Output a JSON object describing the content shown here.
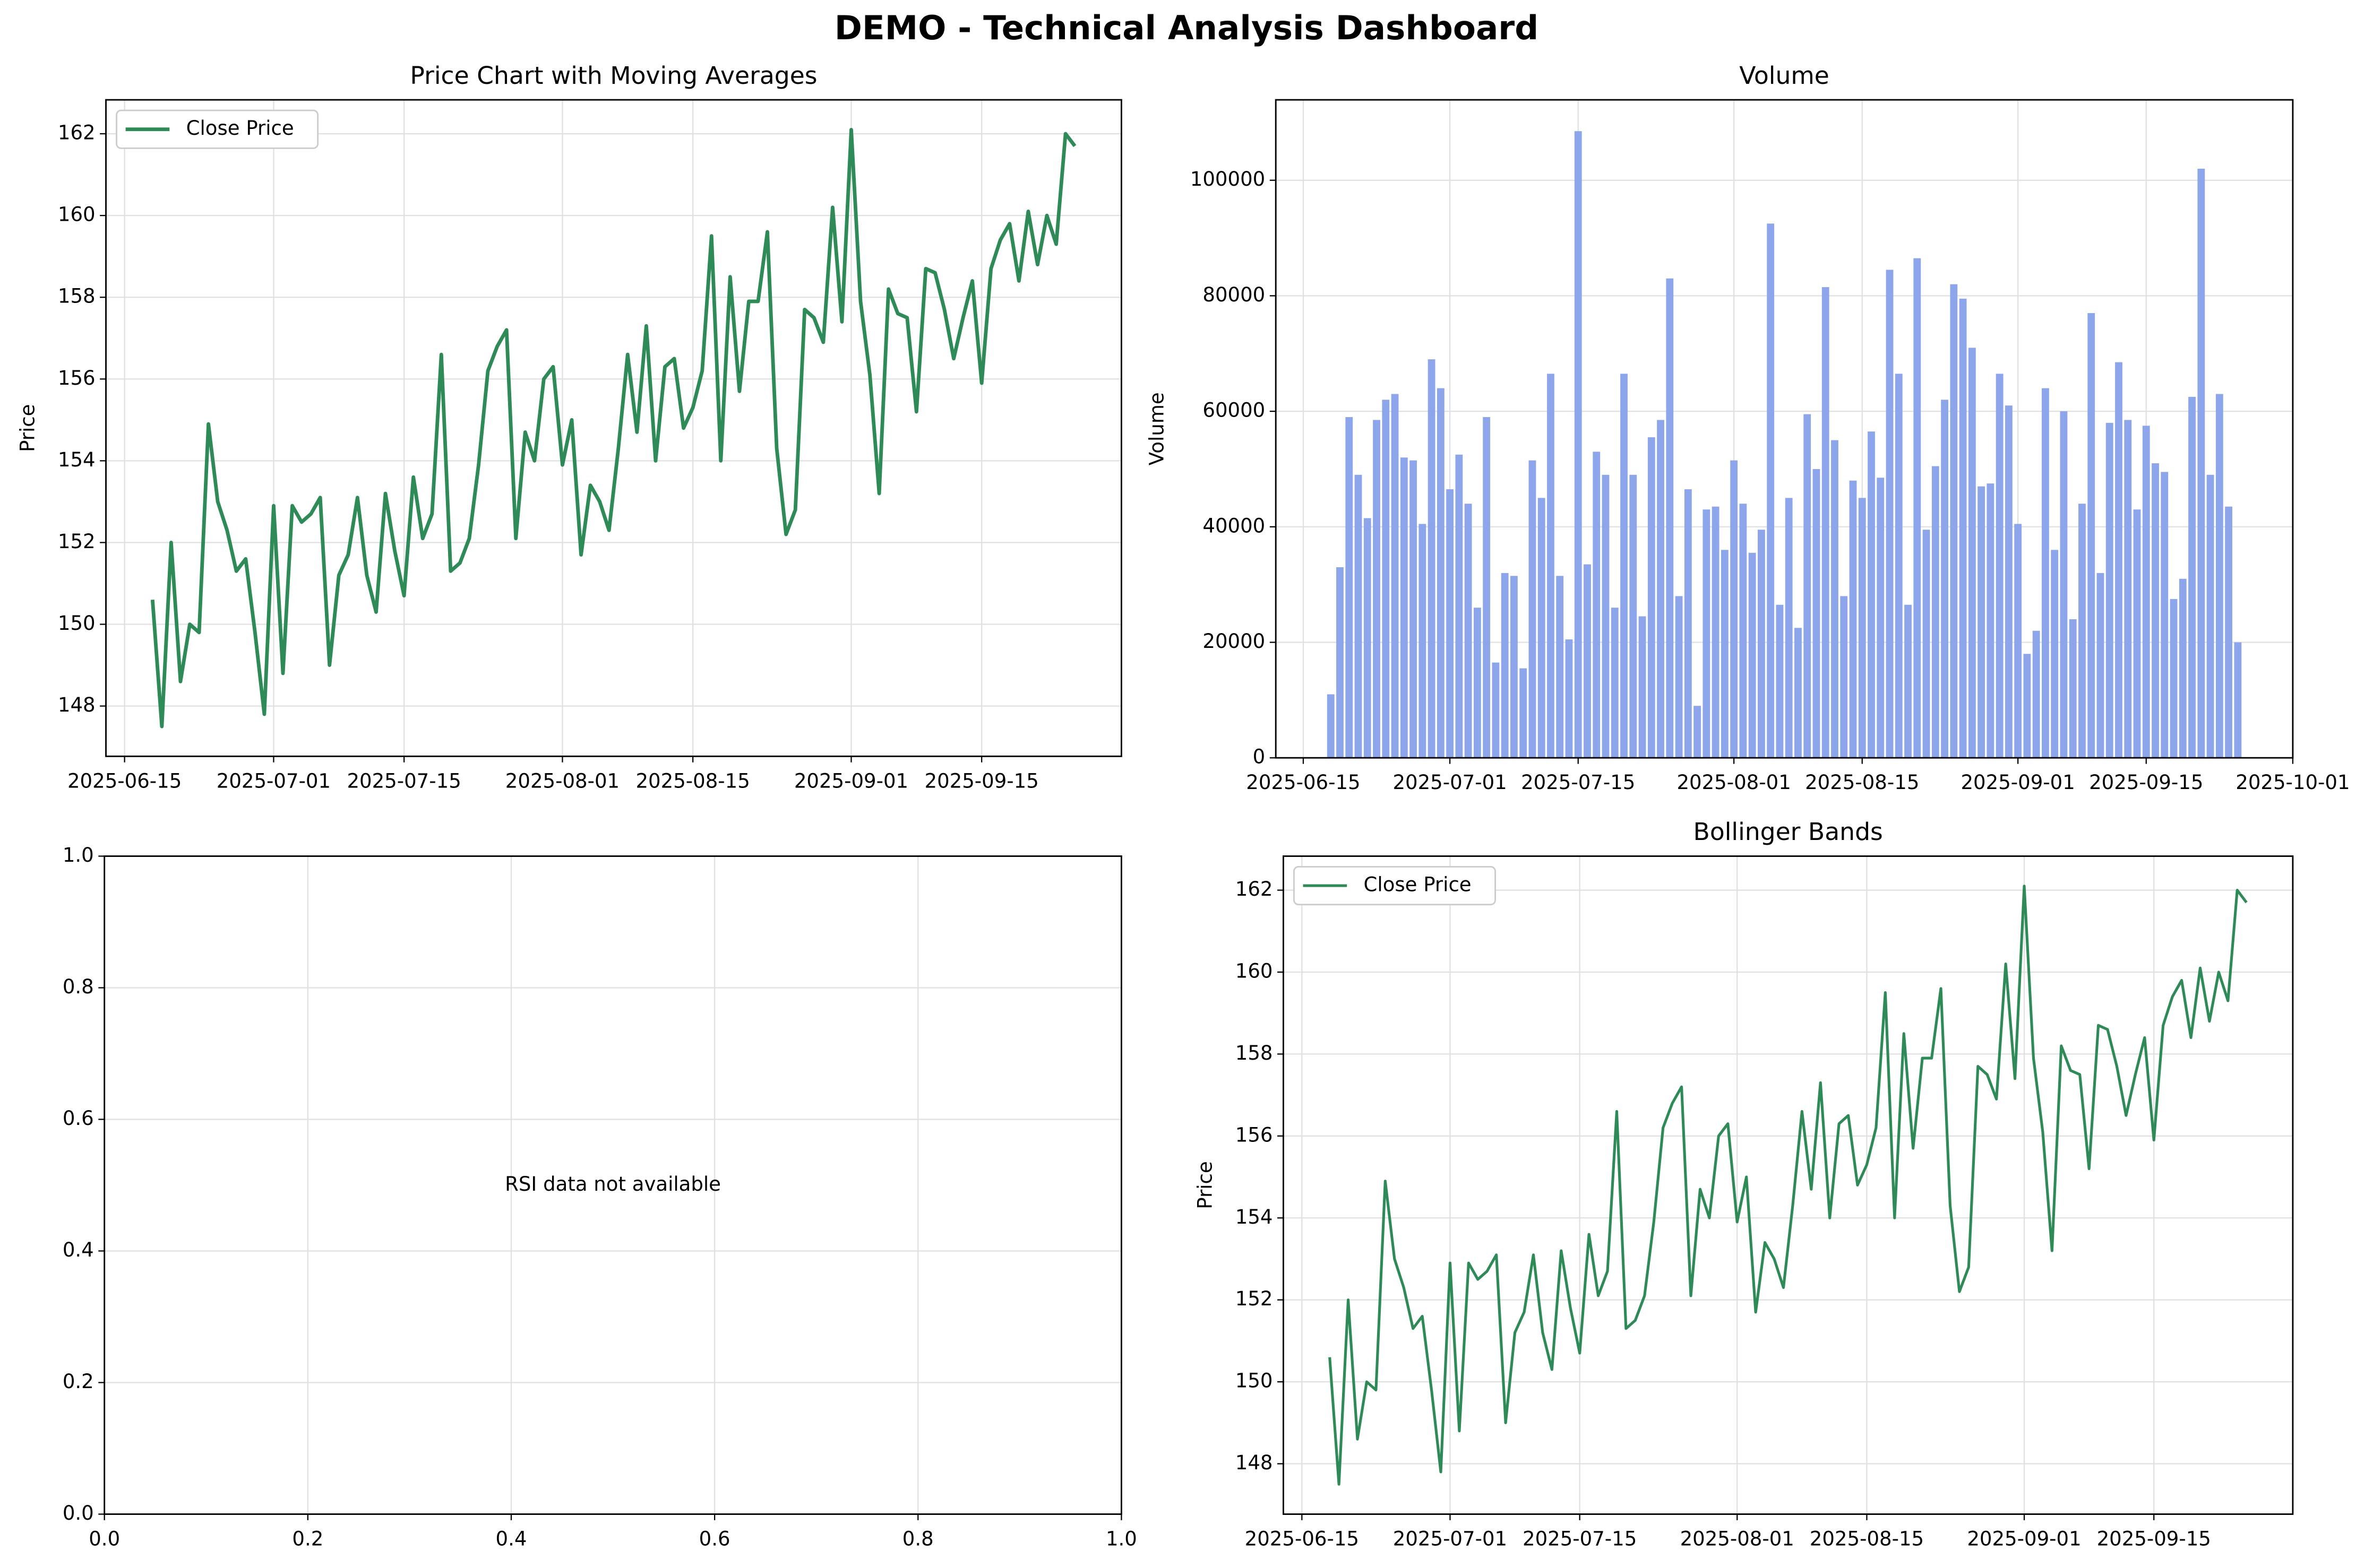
{
  "title": "DEMO - Technical Analysis Dashboard",
  "chart_data": [
    {
      "type": "line",
      "title": "Price Chart with Moving Averages",
      "ylabel": "Price",
      "x": [
        "2025-06-18",
        "2025-06-19",
        "2025-06-20",
        "2025-06-21",
        "2025-06-22",
        "2025-06-23",
        "2025-06-24",
        "2025-06-25",
        "2025-06-26",
        "2025-06-27",
        "2025-06-28",
        "2025-06-29",
        "2025-06-30",
        "2025-07-01",
        "2025-07-02",
        "2025-07-03",
        "2025-07-04",
        "2025-07-05",
        "2025-07-06",
        "2025-07-07",
        "2025-07-08",
        "2025-07-09",
        "2025-07-10",
        "2025-07-11",
        "2025-07-12",
        "2025-07-13",
        "2025-07-14",
        "2025-07-15",
        "2025-07-16",
        "2025-07-17",
        "2025-07-18",
        "2025-07-19",
        "2025-07-20",
        "2025-07-21",
        "2025-07-22",
        "2025-07-23",
        "2025-07-24",
        "2025-07-25",
        "2025-07-26",
        "2025-07-27",
        "2025-07-28",
        "2025-07-29",
        "2025-07-30",
        "2025-07-31",
        "2025-08-01",
        "2025-08-02",
        "2025-08-03",
        "2025-08-04",
        "2025-08-05",
        "2025-08-06",
        "2025-08-07",
        "2025-08-08",
        "2025-08-09",
        "2025-08-10",
        "2025-08-11",
        "2025-08-12",
        "2025-08-13",
        "2025-08-14",
        "2025-08-15",
        "2025-08-16",
        "2025-08-17",
        "2025-08-18",
        "2025-08-19",
        "2025-08-20",
        "2025-08-21",
        "2025-08-22",
        "2025-08-23",
        "2025-08-24",
        "2025-08-25",
        "2025-08-26",
        "2025-08-27",
        "2025-08-28",
        "2025-08-29",
        "2025-08-30",
        "2025-08-31",
        "2025-09-01",
        "2025-09-02",
        "2025-09-03",
        "2025-09-04",
        "2025-09-05",
        "2025-09-06",
        "2025-09-07",
        "2025-09-08",
        "2025-09-09",
        "2025-09-10",
        "2025-09-11",
        "2025-09-12",
        "2025-09-13",
        "2025-09-14",
        "2025-09-15",
        "2025-09-16",
        "2025-09-17",
        "2025-09-18",
        "2025-09-19",
        "2025-09-20",
        "2025-09-21",
        "2025-09-22",
        "2025-09-23",
        "2025-09-24",
        "2025-09-25"
      ],
      "series": [
        {
          "name": "Close Price",
          "color": "#2e8b57",
          "values": [
            150.6,
            147.5,
            152.0,
            148.6,
            150.0,
            149.8,
            154.9,
            153.0,
            152.3,
            151.3,
            151.6,
            149.8,
            147.8,
            152.9,
            148.8,
            152.9,
            152.5,
            152.7,
            153.1,
            149.0,
            151.2,
            151.7,
            153.1,
            151.2,
            150.3,
            153.2,
            151.8,
            150.7,
            153.6,
            152.1,
            152.7,
            156.6,
            151.3,
            151.5,
            152.1,
            153.9,
            156.2,
            156.8,
            157.2,
            152.1,
            154.7,
            154.0,
            156.0,
            156.3,
            153.9,
            155.0,
            151.7,
            153.4,
            153.0,
            152.3,
            154.3,
            156.6,
            154.7,
            157.3,
            154.0,
            156.3,
            156.5,
            154.8,
            155.3,
            156.2,
            159.5,
            154.0,
            158.5,
            155.7,
            157.9,
            157.9,
            159.6,
            154.3,
            152.2,
            152.8,
            157.7,
            157.5,
            156.9,
            160.2,
            157.4,
            162.1,
            157.9,
            156.1,
            153.2,
            158.2,
            157.6,
            157.5,
            155.2,
            158.7,
            158.6,
            157.7,
            156.5,
            157.5,
            158.4,
            155.9,
            158.7,
            159.4,
            159.8,
            158.4,
            160.1,
            158.8,
            160.0,
            159.3,
            162.0,
            161.7
          ]
        }
      ],
      "xlim": [
        "2025-06-13",
        "2025-09-30"
      ],
      "xticks": [
        "2025-06-15",
        "2025-07-01",
        "2025-07-15",
        "2025-08-01",
        "2025-08-15",
        "2025-09-01",
        "2025-09-15"
      ],
      "ylim": [
        146.77,
        162.83
      ],
      "yticks": [
        148,
        150,
        152,
        154,
        156,
        158,
        160,
        162
      ],
      "grid": true,
      "legend": "upper left"
    },
    {
      "type": "bar",
      "title": "Volume",
      "ylabel": "Volume",
      "color": "#8ca5eb",
      "x": [
        "2025-06-18",
        "2025-06-19",
        "2025-06-20",
        "2025-06-21",
        "2025-06-22",
        "2025-06-23",
        "2025-06-24",
        "2025-06-25",
        "2025-06-26",
        "2025-06-27",
        "2025-06-28",
        "2025-06-29",
        "2025-06-30",
        "2025-07-01",
        "2025-07-02",
        "2025-07-03",
        "2025-07-04",
        "2025-07-05",
        "2025-07-06",
        "2025-07-07",
        "2025-07-08",
        "2025-07-09",
        "2025-07-10",
        "2025-07-11",
        "2025-07-12",
        "2025-07-13",
        "2025-07-14",
        "2025-07-15",
        "2025-07-16",
        "2025-07-17",
        "2025-07-18",
        "2025-07-19",
        "2025-07-20",
        "2025-07-21",
        "2025-07-22",
        "2025-07-23",
        "2025-07-24",
        "2025-07-25",
        "2025-07-26",
        "2025-07-27",
        "2025-07-28",
        "2025-07-29",
        "2025-07-30",
        "2025-07-31",
        "2025-08-01",
        "2025-08-02",
        "2025-08-03",
        "2025-08-04",
        "2025-08-05",
        "2025-08-06",
        "2025-08-07",
        "2025-08-08",
        "2025-08-09",
        "2025-08-10",
        "2025-08-11",
        "2025-08-12",
        "2025-08-13",
        "2025-08-14",
        "2025-08-15",
        "2025-08-16",
        "2025-08-17",
        "2025-08-18",
        "2025-08-19",
        "2025-08-20",
        "2025-08-21",
        "2025-08-22",
        "2025-08-23",
        "2025-08-24",
        "2025-08-25",
        "2025-08-26",
        "2025-08-27",
        "2025-08-28",
        "2025-08-29",
        "2025-08-30",
        "2025-08-31",
        "2025-09-01",
        "2025-09-02",
        "2025-09-03",
        "2025-09-04",
        "2025-09-05",
        "2025-09-06",
        "2025-09-07",
        "2025-09-08",
        "2025-09-09",
        "2025-09-10",
        "2025-09-11",
        "2025-09-12",
        "2025-09-13",
        "2025-09-14",
        "2025-09-15",
        "2025-09-16",
        "2025-09-17",
        "2025-09-18",
        "2025-09-19",
        "2025-09-20",
        "2025-09-21",
        "2025-09-22",
        "2025-09-23",
        "2025-09-24",
        "2025-09-25"
      ],
      "values": [
        11000,
        33000,
        59000,
        49000,
        41500,
        58500,
        62000,
        63000,
        52000,
        51500,
        40500,
        69000,
        64000,
        46500,
        52500,
        44000,
        26000,
        59000,
        16500,
        32000,
        31500,
        15500,
        51500,
        45000,
        66500,
        31500,
        20500,
        108500,
        33500,
        53000,
        49000,
        26000,
        66500,
        49000,
        24500,
        55500,
        58500,
        83000,
        28000,
        46500,
        9000,
        43000,
        43500,
        36000,
        51500,
        44000,
        35500,
        39500,
        92500,
        26500,
        45000,
        22500,
        59500,
        50000,
        81500,
        55000,
        28000,
        48000,
        45000,
        56500,
        48500,
        84500,
        66500,
        26500,
        86500,
        39500,
        50500,
        62000,
        82000,
        79500,
        71000,
        47000,
        47500,
        66500,
        61000,
        40500,
        18000,
        22000,
        64000,
        36000,
        60000,
        24000,
        44000,
        77000,
        32000,
        58000,
        68500,
        58500,
        43000,
        57500,
        51000,
        49500,
        27500,
        31000,
        62500,
        102000,
        49000,
        63000,
        43500,
        20000
      ],
      "xlim": [
        "2025-06-12",
        "2025-10-01"
      ],
      "xticks": [
        "2025-06-15",
        "2025-07-01",
        "2025-07-15",
        "2025-08-01",
        "2025-08-15",
        "2025-09-01",
        "2025-09-15",
        "2025-10-01"
      ],
      "ylim": [
        0,
        113925
      ],
      "yticks": [
        0,
        20000,
        40000,
        60000,
        80000,
        100000
      ],
      "grid": true
    },
    {
      "type": "empty",
      "annotation": "RSI data not available",
      "xlim": [
        0,
        1
      ],
      "xticks": [
        {
          "value": 0,
          "label": "0.0"
        },
        0.2,
        0.4,
        0.6,
        0.8,
        {
          "value": 1,
          "label": "1.0"
        }
      ],
      "ylim": [
        0,
        1
      ],
      "yticks": [
        {
          "value": 0,
          "label": "0.0"
        },
        0.2,
        0.4,
        0.6,
        0.8,
        {
          "value": 1,
          "label": "1.0"
        }
      ],
      "grid": true
    },
    {
      "type": "line",
      "title": "Bollinger Bands",
      "ylabel": "Price",
      "x": [
        "2025-06-18",
        "2025-06-19",
        "2025-06-20",
        "2025-06-21",
        "2025-06-22",
        "2025-06-23",
        "2025-06-24",
        "2025-06-25",
        "2025-06-26",
        "2025-06-27",
        "2025-06-28",
        "2025-06-29",
        "2025-06-30",
        "2025-07-01",
        "2025-07-02",
        "2025-07-03",
        "2025-07-04",
        "2025-07-05",
        "2025-07-06",
        "2025-07-07",
        "2025-07-08",
        "2025-07-09",
        "2025-07-10",
        "2025-07-11",
        "2025-07-12",
        "2025-07-13",
        "2025-07-14",
        "2025-07-15",
        "2025-07-16",
        "2025-07-17",
        "2025-07-18",
        "2025-07-19",
        "2025-07-20",
        "2025-07-21",
        "2025-07-22",
        "2025-07-23",
        "2025-07-24",
        "2025-07-25",
        "2025-07-26",
        "2025-07-27",
        "2025-07-28",
        "2025-07-29",
        "2025-07-30",
        "2025-07-31",
        "2025-08-01",
        "2025-08-02",
        "2025-08-03",
        "2025-08-04",
        "2025-08-05",
        "2025-08-06",
        "2025-08-07",
        "2025-08-08",
        "2025-08-09",
        "2025-08-10",
        "2025-08-11",
        "2025-08-12",
        "2025-08-13",
        "2025-08-14",
        "2025-08-15",
        "2025-08-16",
        "2025-08-17",
        "2025-08-18",
        "2025-08-19",
        "2025-08-20",
        "2025-08-21",
        "2025-08-22",
        "2025-08-23",
        "2025-08-24",
        "2025-08-25",
        "2025-08-26",
        "2025-08-27",
        "2025-08-28",
        "2025-08-29",
        "2025-08-30",
        "2025-08-31",
        "2025-09-01",
        "2025-09-02",
        "2025-09-03",
        "2025-09-04",
        "2025-09-05",
        "2025-09-06",
        "2025-09-07",
        "2025-09-08",
        "2025-09-09",
        "2025-09-10",
        "2025-09-11",
        "2025-09-12",
        "2025-09-13",
        "2025-09-14",
        "2025-09-15",
        "2025-09-16",
        "2025-09-17",
        "2025-09-18",
        "2025-09-19",
        "2025-09-20",
        "2025-09-21",
        "2025-09-22",
        "2025-09-23",
        "2025-09-24",
        "2025-09-25"
      ],
      "series": [
        {
          "name": "Close Price",
          "color": "#2e8b57",
          "values": [
            150.6,
            147.5,
            152.0,
            148.6,
            150.0,
            149.8,
            154.9,
            153.0,
            152.3,
            151.3,
            151.6,
            149.8,
            147.8,
            152.9,
            148.8,
            152.9,
            152.5,
            152.7,
            153.1,
            149.0,
            151.2,
            151.7,
            153.1,
            151.2,
            150.3,
            153.2,
            151.8,
            150.7,
            153.6,
            152.1,
            152.7,
            156.6,
            151.3,
            151.5,
            152.1,
            153.9,
            156.2,
            156.8,
            157.2,
            152.1,
            154.7,
            154.0,
            156.0,
            156.3,
            153.9,
            155.0,
            151.7,
            153.4,
            153.0,
            152.3,
            154.3,
            156.6,
            154.7,
            157.3,
            154.0,
            156.3,
            156.5,
            154.8,
            155.3,
            156.2,
            159.5,
            154.0,
            158.5,
            155.7,
            157.9,
            157.9,
            159.6,
            154.3,
            152.2,
            152.8,
            157.7,
            157.5,
            156.9,
            160.2,
            157.4,
            162.1,
            157.9,
            156.1,
            153.2,
            158.2,
            157.6,
            157.5,
            155.2,
            158.7,
            158.6,
            157.7,
            156.5,
            157.5,
            158.4,
            155.9,
            158.7,
            159.4,
            159.8,
            158.4,
            160.1,
            158.8,
            160.0,
            159.3,
            162.0,
            161.7
          ]
        }
      ],
      "xlim": [
        "2025-06-13",
        "2025-09-30"
      ],
      "xticks": [
        "2025-06-15",
        "2025-07-01",
        "2025-07-15",
        "2025-08-01",
        "2025-08-15",
        "2025-09-01",
        "2025-09-15"
      ],
      "ylim": [
        146.77,
        162.83
      ],
      "yticks": [
        148,
        150,
        152,
        154,
        156,
        158,
        160,
        162
      ],
      "grid": true,
      "legend": "upper left"
    }
  ]
}
